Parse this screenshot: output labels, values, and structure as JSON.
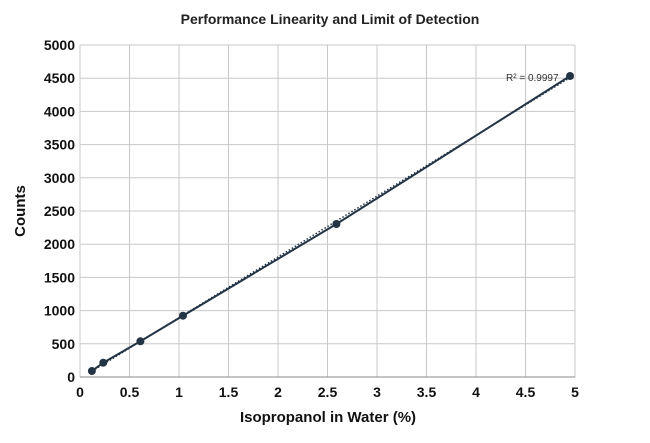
{
  "chart_data": {
    "type": "scatter",
    "title": "Performance Linearity and Limit of Detection",
    "xlabel": "Isopropanol in Water (%)",
    "ylabel": "Counts",
    "xlim": [
      0,
      5
    ],
    "ylim": [
      0,
      5000
    ],
    "xticks": [
      "0",
      "0.5",
      "1",
      "1.5",
      "2",
      "2.5",
      "3",
      "3.5",
      "4",
      "4.5",
      "5"
    ],
    "yticks": [
      "0",
      "500",
      "1000",
      "1500",
      "2000",
      "2500",
      "3000",
      "3500",
      "4000",
      "4500",
      "5000"
    ],
    "grid": true,
    "series": [
      {
        "x": [
          0.12,
          0.235,
          0.61,
          1.04,
          2.59,
          4.95
        ],
        "y": [
          90,
          215,
          538,
          923,
          2304,
          4533
        ],
        "color": "#233445",
        "connected": true
      }
    ],
    "trendline": {
      "type": "linear",
      "style": "dotted",
      "annotation": "R² = 0.9997"
    }
  }
}
